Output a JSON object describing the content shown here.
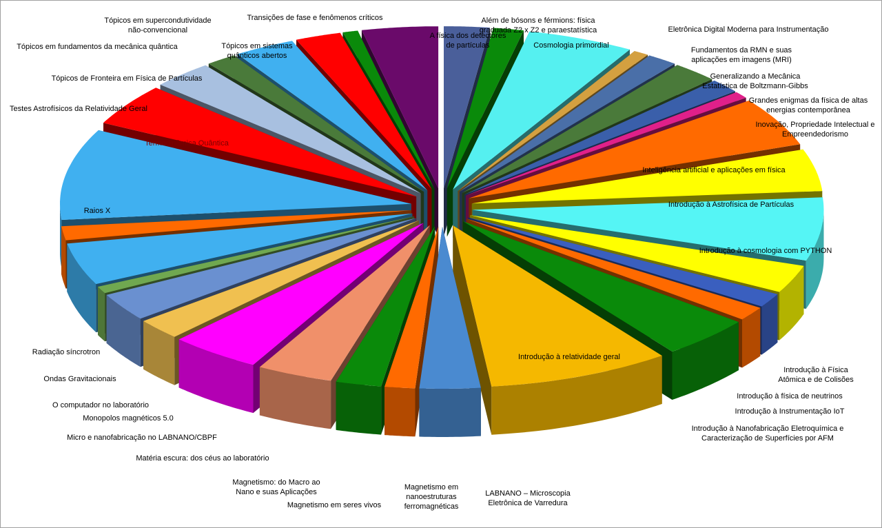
{
  "chart_data": {
    "type": "pie",
    "style": "3d-exploded",
    "title": "",
    "legend": "none",
    "slices": [
      {
        "label": "A física dos detectores de partículas",
        "value": 3,
        "color": "#4a5f9a"
      },
      {
        "label": "Além de bósons e férmions: física graduada Z2 x Z2 e paraestatística",
        "value": 2,
        "color": "#0a8a0a"
      },
      {
        "label": "Cosmologia primordial",
        "value": 7,
        "color": "#55f0f0"
      },
      {
        "label": "Eletrônica Digital Moderna para Instrumentação",
        "value": 1,
        "color": "#d4a040"
      },
      {
        "label": "Fundamentos da RMN e suas aplicações em imagens (MRI)",
        "value": 2,
        "color": "#4a6fa8"
      },
      {
        "label": "Generalizando a Mecânica Estatística de Boltzmann-Gibbs",
        "value": 3,
        "color": "#4a7a3a"
      },
      {
        "label": "Grandes enigmas da física de altas energias contemporânea",
        "value": 2,
        "color": "#3a5faa"
      },
      {
        "label": "Inovação, Propriedade Intelectual e Empreendedorismo",
        "value": 1,
        "color": "#e0208a"
      },
      {
        "label": "Inteligência artificial e aplicações em física",
        "value": 7,
        "color": "#ff6a00"
      },
      {
        "label": "Introdução à Astrofísica de Partículas",
        "value": 6,
        "color": "#ffff00"
      },
      {
        "label": "Introdução à cosmologia com PYTHON",
        "value": 9,
        "color": "#55f5f5"
      },
      {
        "label": "Introdução à Física Atômica e de Colisões",
        "value": 4,
        "color": "#ffff00"
      },
      {
        "label": "Introdução à física de neutrinos",
        "value": 2,
        "color": "#3a5fbf"
      },
      {
        "label": "Introdução à Instrumentação IoT",
        "value": 2,
        "color": "#ff6a00"
      },
      {
        "label": "Introdução à Nanofabricação Eletroquímica e Caracterização de Superfícies por AFM",
        "value": 6,
        "color": "#0a8a0a"
      },
      {
        "label": "Introdução à relatividade geral",
        "value": 12,
        "color": "#f5b800"
      },
      {
        "label": "LABNANO – Microscopia Eletrônica de Varredura",
        "value": 4,
        "color": "#4a8ad0"
      },
      {
        "label": "Magnetismo em nanoestruturas ferromagnéticas",
        "value": 2,
        "color": "#ff6a00"
      },
      {
        "label": "Magnetismo em seres vivos",
        "value": 3,
        "color": "#0a8a0a"
      },
      {
        "label": "Magnetismo: do Macro ao Nano e suas Aplicações",
        "value": 5,
        "color": "#f0906a"
      },
      {
        "label": "Matéria escura: dos céus ao laboratório",
        "value": 6,
        "color": "#ff00ff"
      },
      {
        "label": "Micro e nanofabricação no LABNANO/CBPF",
        "value": 3,
        "color": "#f0c050"
      },
      {
        "label": "Monopolos magnéticos 5.0",
        "value": 4,
        "color": "#6a90d0"
      },
      {
        "label": "O computador no laboratório",
        "value": 1,
        "color": "#70a850"
      },
      {
        "label": "Ondas Gravitacionais",
        "value": 6,
        "color": "#40b0f0"
      },
      {
        "label": "Radiação síncrotron",
        "value": 2,
        "color": "#ff6a00"
      },
      {
        "label": "Raios X",
        "value": 13,
        "color": "#40b0f0"
      },
      {
        "label": "Termodinâmica Quântica",
        "value": 6,
        "color": "#ff0000"
      },
      {
        "label": "Testes Astrofísicos da Relatividade Geral",
        "value": 4,
        "color": "#a8c0e0"
      },
      {
        "label": "Tópicos de Fronteira em Física de Partículas",
        "value": 2,
        "color": "#4a7a3a"
      },
      {
        "label": "Tópicos em fundamentos da mecânica quântica",
        "value": 4,
        "color": "#40b0f0"
      },
      {
        "label": "Tópicos em sistemas quânticos abertos",
        "value": 3,
        "color": "#ff0000"
      },
      {
        "label": "Tópicos em supercondutividade não-convencional",
        "value": 1,
        "color": "#0a8a0a"
      },
      {
        "label": "Transições de fase e fenômenos críticos",
        "value": 5,
        "color": "#6a0a6a"
      }
    ]
  }
}
